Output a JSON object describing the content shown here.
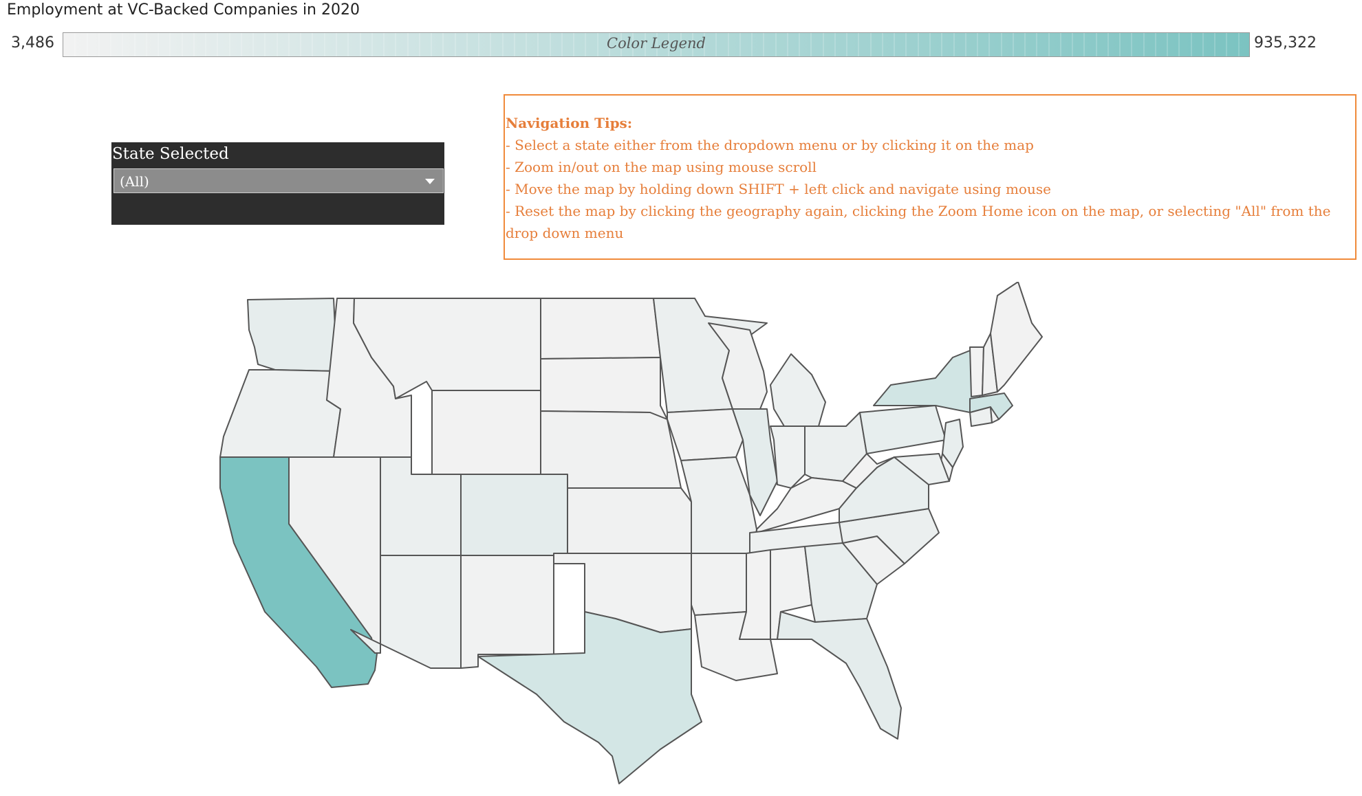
{
  "header": {
    "title": "Employment at VC-Backed Companies in 2020"
  },
  "legend": {
    "label": "Color Legend",
    "min_label": "3,486",
    "max_label": "935,322",
    "min_value": 3486,
    "max_value": 935322,
    "color_low": "#f2f2f2",
    "color_high": "#7bc3c1"
  },
  "filter": {
    "title": "State Selected",
    "selected": "(All)"
  },
  "tips": {
    "title": "Navigation Tips:",
    "lines": [
      "- Select a state either from the dropdown menu or by clicking it on the map",
      "- Zoom in/out on the map using mouse scroll",
      "- Move the map by holding down SHIFT + left click and navigate using mouse",
      "- Reset the map by clicking the geography again, clicking the Zoom Home icon on the map, or selecting \"All\" from the drop down menu"
    ]
  },
  "map": {
    "stroke_color": "#555555",
    "states": [
      {
        "id": "WA",
        "shade": 0.1
      },
      {
        "id": "OR",
        "shade": 0.04
      },
      {
        "id": "CA",
        "shade": 1.0
      },
      {
        "id": "ID",
        "shade": 0.01
      },
      {
        "id": "NV",
        "shade": 0.02
      },
      {
        "id": "MT",
        "shade": 0.01
      },
      {
        "id": "WY",
        "shade": 0.0
      },
      {
        "id": "UT",
        "shade": 0.06
      },
      {
        "id": "AZ",
        "shade": 0.05
      },
      {
        "id": "CO",
        "shade": 0.12
      },
      {
        "id": "NM",
        "shade": 0.01
      },
      {
        "id": "ND",
        "shade": 0.0
      },
      {
        "id": "SD",
        "shade": 0.0
      },
      {
        "id": "NE",
        "shade": 0.02
      },
      {
        "id": "KS",
        "shade": 0.02
      },
      {
        "id": "OK",
        "shade": 0.01
      },
      {
        "id": "TX",
        "shade": 0.26
      },
      {
        "id": "MN",
        "shade": 0.06
      },
      {
        "id": "IA",
        "shade": 0.01
      },
      {
        "id": "MO",
        "shade": 0.04
      },
      {
        "id": "AR",
        "shade": 0.01
      },
      {
        "id": "LA",
        "shade": 0.01
      },
      {
        "id": "WI",
        "shade": 0.02
      },
      {
        "id": "IL",
        "shade": 0.12
      },
      {
        "id": "MI",
        "shade": 0.05
      },
      {
        "id": "IN",
        "shade": 0.03
      },
      {
        "id": "OH",
        "shade": 0.06
      },
      {
        "id": "KY",
        "shade": 0.01
      },
      {
        "id": "TN",
        "shade": 0.04
      },
      {
        "id": "MS",
        "shade": 0.0
      },
      {
        "id": "AL",
        "shade": 0.01
      },
      {
        "id": "GA",
        "shade": 0.08
      },
      {
        "id": "FL",
        "shade": 0.12
      },
      {
        "id": "SC",
        "shade": 0.02
      },
      {
        "id": "NC",
        "shade": 0.06
      },
      {
        "id": "VA",
        "shade": 0.08
      },
      {
        "id": "WV",
        "shade": 0.0
      },
      {
        "id": "PA",
        "shade": 0.09
      },
      {
        "id": "NY",
        "shade": 0.28
      },
      {
        "id": "NJ",
        "shade": 0.08
      },
      {
        "id": "DE",
        "shade": 0.01
      },
      {
        "id": "MD",
        "shade": 0.05
      },
      {
        "id": "CT",
        "shade": 0.04
      },
      {
        "id": "RI",
        "shade": 0.01
      },
      {
        "id": "MA",
        "shade": 0.3
      },
      {
        "id": "VT",
        "shade": 0.0
      },
      {
        "id": "NH",
        "shade": 0.02
      },
      {
        "id": "ME",
        "shade": 0.0
      }
    ]
  }
}
